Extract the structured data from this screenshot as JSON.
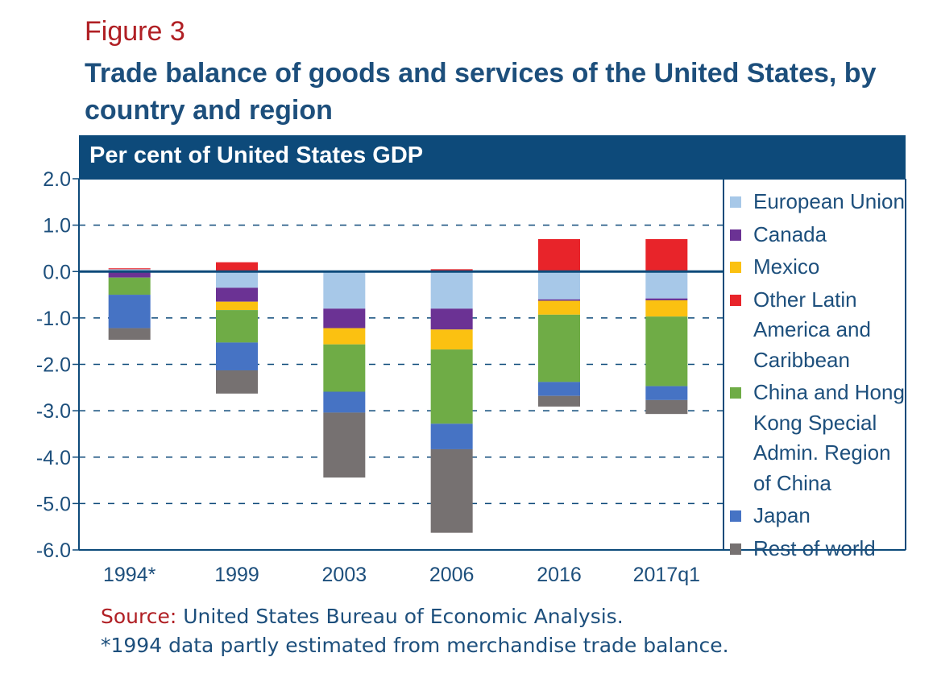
{
  "figure_label": "Figure 3",
  "title": "Trade balance of goods and services of the United States, by country and region",
  "source_label": "Source:",
  "source_text": " United States Bureau of Economic Analysis.",
  "note": "*1994 data partly estimated from merchandise trade balance.",
  "colors": {
    "banner": "#0d4a7a",
    "title": "#1d4f7c",
    "accent_red": "#b01f24"
  },
  "chart_data": {
    "type": "bar",
    "stacked": true,
    "subtitle": "Per cent of United States GDP",
    "xlabel": "",
    "ylabel": "",
    "ylim": [
      -6.0,
      2.0
    ],
    "yticks": [
      "2.0",
      "1.0",
      "0.0",
      "-1.0",
      "-2.0",
      "-3.0",
      "-4.0",
      "-5.0",
      "-6.0"
    ],
    "grid": true,
    "legend_position": "right",
    "categories": [
      "1994*",
      "1999",
      "2003",
      "2006",
      "2016",
      "2017q1"
    ],
    "series": [
      {
        "name": "European Union",
        "color": "#a7c8e8",
        "values": [
          0.05,
          -0.35,
          -0.8,
          -0.8,
          -0.6,
          -0.58
        ]
      },
      {
        "name": "Canada",
        "color": "#6b3294",
        "values": [
          -0.13,
          -0.3,
          -0.42,
          -0.45,
          -0.03,
          -0.04
        ]
      },
      {
        "name": "Mexico",
        "color": "#fbc111",
        "values": [
          0,
          -0.18,
          -0.35,
          -0.43,
          -0.3,
          -0.35
        ]
      },
      {
        "name": "Other Latin America and Caribbean",
        "color": "#e8242a",
        "values": [
          0.02,
          0.2,
          0,
          0.05,
          0.7,
          0.7
        ]
      },
      {
        "name": "China and Hong Kong Special Admin. Region of China",
        "color": "#6fac46",
        "values": [
          -0.37,
          -0.7,
          -1.02,
          -1.6,
          -1.45,
          -1.5
        ]
      },
      {
        "name": "Japan",
        "color": "#4673c4",
        "values": [
          -0.72,
          -0.6,
          -0.45,
          -0.55,
          -0.3,
          -0.3
        ]
      },
      {
        "name": "Rest of world",
        "color": "#767171",
        "values": [
          -0.25,
          -0.5,
          -1.4,
          -1.8,
          -0.23,
          -0.3
        ]
      }
    ]
  }
}
